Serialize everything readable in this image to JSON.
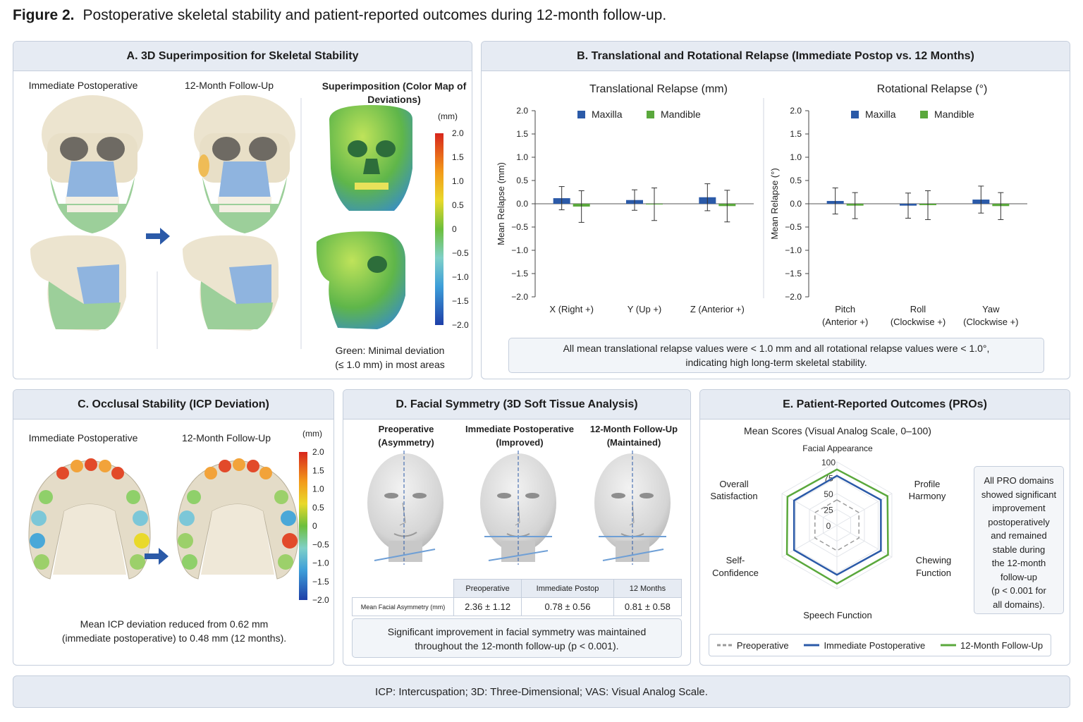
{
  "figure": {
    "label": "Figure 2.",
    "title": "Postoperative skeletal stability and patient-reported outcomes during 12-month follow-up."
  },
  "panelA": {
    "title": "A. 3D Superimposition for Skeletal Stability",
    "col1": "Immediate Postoperative",
    "col2": "12-Month Follow-Up",
    "col3": "Superimposition (Color Map of Deviations)",
    "unit": "(mm)",
    "scale": [
      "2.0",
      "1.5",
      "1.0",
      "0.5",
      "0",
      "−0.5",
      "−1.0",
      "−1.5",
      "−2.0"
    ],
    "note1": "Green: Minimal deviation",
    "note2": "(≤ 1.0 mm) in most areas"
  },
  "panelB": {
    "title": "B. Translational and Rotational Relapse (Immediate Postop vs. 12 Months)",
    "note1": "All mean translational relapse values were < 1.0 mm and all rotational relapse values were < 1.0°,",
    "note2": "indicating high long-term skeletal stability."
  },
  "chart_data": [
    {
      "type": "bar",
      "title": "Translational Relapse (mm)",
      "ylabel": "Mean Relapse (mm)",
      "ylim": [
        -2.0,
        2.0
      ],
      "yticks": [
        "2.0",
        "1.5",
        "1.0",
        "0.5",
        "0.0",
        "−0.5",
        "−1.0",
        "−1.5",
        "−2.0"
      ],
      "categories": [
        "X (Right +)",
        "Y (Up +)",
        "Z (Anterior +)"
      ],
      "series": [
        {
          "name": "Maxilla",
          "color": "#2b5aa8",
          "values": [
            0.12,
            0.08,
            0.14
          ],
          "err": [
            0.25,
            0.22,
            0.29
          ]
        },
        {
          "name": "Mandible",
          "color": "#5aa83c",
          "values": [
            -0.06,
            -0.01,
            -0.05
          ],
          "err": [
            0.34,
            0.35,
            0.34
          ]
        }
      ]
    },
    {
      "type": "bar",
      "title": "Rotational Relapse (°)",
      "ylabel": "Mean Relapse (°)",
      "ylim": [
        -2.0,
        2.0
      ],
      "yticks": [
        "2.0",
        "1.5",
        "1.0",
        "0.5",
        "0.0",
        "−0.5",
        "−1.0",
        "−1.5",
        "−2.0"
      ],
      "categories": [
        "Pitch",
        "Roll",
        "Yaw"
      ],
      "categories2": [
        "(Anterior +)",
        "(Clockwise +)",
        "(Clockwise +)"
      ],
      "series": [
        {
          "name": "Maxilla",
          "color": "#2b5aa8",
          "values": [
            0.06,
            -0.04,
            0.09
          ],
          "err": [
            0.28,
            0.27,
            0.29
          ]
        },
        {
          "name": "Mandible",
          "color": "#5aa83c",
          "values": [
            -0.04,
            -0.03,
            -0.05
          ],
          "err": [
            0.28,
            0.31,
            0.29
          ]
        }
      ]
    },
    {
      "type": "radar",
      "title": "Mean Scores (Visual Analog Scale, 0–100)",
      "axes": [
        "Facial Appearance",
        "Profile Harmony",
        "Chewing Function",
        "Speech Function",
        "Self-Confidence",
        "Overall Satisfaction"
      ],
      "rticks": [
        "100",
        "75",
        "50",
        "25",
        "0"
      ],
      "rlim": [
        0,
        100
      ],
      "series": [
        {
          "name": "Preoperative",
          "color": "#9a9a9a",
          "values": [
            40,
            40,
            40,
            40,
            40,
            40
          ]
        },
        {
          "name": "Immediate Postoperative",
          "color": "#2b5aa8",
          "values": [
            78,
            80,
            80,
            78,
            78,
            78
          ]
        },
        {
          "name": "12-Month Follow-Up",
          "color": "#5aa83c",
          "values": [
            88,
            92,
            93,
            92,
            91,
            90
          ]
        }
      ]
    }
  ],
  "panelC": {
    "title": "C. Occlusal Stability (ICP Deviation)",
    "col1": "Immediate Postoperative",
    "col2": "12-Month Follow-Up",
    "unit": "(mm)",
    "scale": [
      "2.0",
      "1.5",
      "1.0",
      "0.5",
      "0",
      "−0.5",
      "−1.0",
      "−1.5",
      "−2.0"
    ],
    "note1": "Mean ICP deviation reduced from 0.62 mm",
    "note2": "(immediate postoperative) to 0.48 mm (12 months)."
  },
  "panelD": {
    "title": "D. Facial Symmetry (3D Soft Tissue Analysis)",
    "cols": [
      {
        "l1": "Preoperative",
        "l2": "(Asymmetry)"
      },
      {
        "l1": "Immediate Postoperative",
        "l2": "(Improved)"
      },
      {
        "l1": "12-Month Follow-Up",
        "l2": "(Maintained)"
      }
    ],
    "table": {
      "headers": [
        "Preoperative",
        "Immediate Postop",
        "12 Months"
      ],
      "rowLabel": "Mean Facial Asymmetry (mm)",
      "values": [
        "2.36 ± 1.12",
        "0.78 ± 0.56",
        "0.81 ± 0.58"
      ]
    },
    "note1": "Significant improvement in facial symmetry was maintained",
    "note2": "throughout the 12-month follow-up (p < 0.001)."
  },
  "panelE": {
    "title": "E. Patient-Reported Outcomes (PROs)",
    "axisLabels": {
      "top": "Facial Appearance",
      "tr1": "Profile",
      "tr2": "Harmony",
      "br1": "Chewing",
      "br2": "Function",
      "bottom": "Speech Function",
      "bl1": "Self-",
      "bl2": "Confidence",
      "tl1": "Overall",
      "tl2": "Satisfaction"
    },
    "side": [
      "All PRO domains",
      "showed significant",
      "improvement",
      "postoperatively",
      "and remained",
      "stable during",
      "the 12-month",
      "follow-up",
      "(p < 0.001 for",
      "all domains)."
    ]
  },
  "footer": "ICP: Intercuspation; 3D: Three-Dimensional; VAS: Visual Analog Scale."
}
